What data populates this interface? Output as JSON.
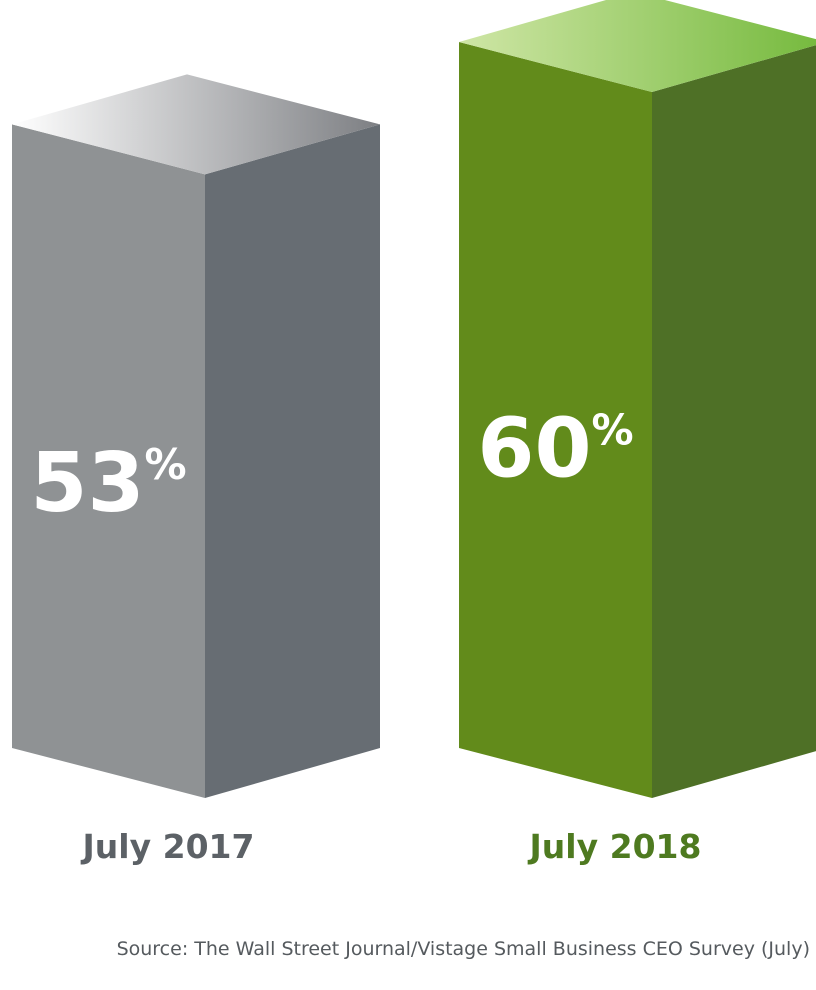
{
  "chart_data": {
    "type": "bar3d",
    "categories": [
      "July 2017",
      "July 2018"
    ],
    "values": [
      53,
      60
    ],
    "value_labels": [
      "53%",
      "60%"
    ],
    "colors": [
      "#8f9294",
      "#628b1b"
    ],
    "source": "Source: The Wall Street Journal/Vistage Small Business CEO Survey (July)"
  }
}
